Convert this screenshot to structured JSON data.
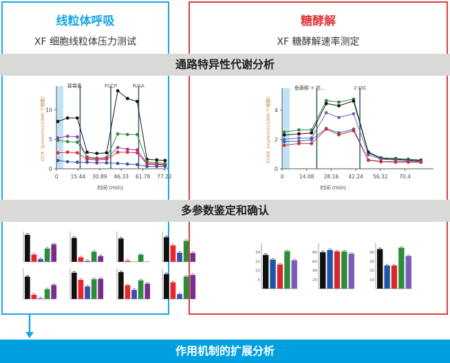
{
  "left_panel": {
    "title": "线粒体呼吸",
    "subtitle": "XF 细胞线粒体压力测试",
    "border_color": "#19a6e0"
  },
  "right_panel": {
    "title": "糖酵解",
    "subtitle": "XF 糖酵解速率测定",
    "border_color": "#e03a3e"
  },
  "bands": {
    "pathway": "通路特异性代谢分析",
    "multiparam": "多参数鉴定和确认"
  },
  "footer": {
    "label": "作用机制的扩展分析",
    "color": "#009fe0"
  },
  "chart_data": [
    {
      "type": "line",
      "title": "",
      "xlabel": "时间 (min)",
      "ylabel": "OCR（pmol/min/1000 个细胞）",
      "x_ticks": [
        "0",
        "15.44",
        "30.89",
        "46.33",
        "61.78",
        "77.22"
      ],
      "y_ticks": [
        "0",
        "5",
        "10"
      ],
      "ylim": [
        0,
        14
      ],
      "injections": [
        "寡霉素",
        "FCCP",
        "R/AA"
      ],
      "x": [
        1,
        8,
        15,
        22,
        29,
        36,
        44,
        51,
        58,
        65,
        72,
        78
      ],
      "series": [
        {
          "name": "black",
          "color": "#111111",
          "values": [
            8.0,
            8.6,
            8.6,
            2.8,
            2.6,
            2.7,
            13.2,
            11.9,
            11.4,
            1.6,
            1.5,
            1.4
          ]
        },
        {
          "name": "green",
          "color": "#2e8b3a",
          "values": [
            4.8,
            4.6,
            4.5,
            2.0,
            1.8,
            1.9,
            5.9,
            5.8,
            5.8,
            1.2,
            1.0,
            0.9
          ]
        },
        {
          "name": "purple",
          "color": "#8a3fa0",
          "values": [
            5.2,
            5.5,
            5.4,
            1.8,
            1.7,
            1.8,
            3.6,
            3.3,
            3.2,
            0.9,
            0.8,
            0.7
          ]
        },
        {
          "name": "red",
          "color": "#e8262e",
          "values": [
            2.7,
            2.8,
            2.7,
            1.6,
            1.5,
            1.6,
            2.8,
            2.8,
            2.7,
            0.8,
            0.7,
            0.6
          ]
        },
        {
          "name": "blue",
          "color": "#3a4fa8",
          "values": [
            1.4,
            1.2,
            1.1,
            1.1,
            1.0,
            1.0,
            0.9,
            0.8,
            0.7,
            0.4,
            0.4,
            0.4
          ]
        }
      ]
    },
    {
      "type": "line",
      "title": "",
      "xlabel": "时间 (min)",
      "ylabel": "ECAR（mpH/min/1000 个细胞）",
      "x_ticks": [
        "0",
        "14.08",
        "28.16",
        "42.24",
        "56.32",
        "70.4"
      ],
      "y_ticks": [
        "0",
        "2",
        "4"
      ],
      "ylim": [
        0,
        5.5
      ],
      "injections": [
        "鱼藤酮 + 抗...",
        "2-DG"
      ],
      "x": [
        1,
        8,
        14,
        21,
        27,
        34,
        41,
        47,
        54,
        60,
        66
      ],
      "series": [
        {
          "name": "green",
          "color": "#2e8b3a",
          "values": [
            2.5,
            2.65,
            2.65,
            4.65,
            4.55,
            4.75,
            1.15,
            0.75,
            0.7,
            0.65,
            0.6
          ]
        },
        {
          "name": "black",
          "color": "#111111",
          "values": [
            2.3,
            2.38,
            2.45,
            4.45,
            4.3,
            4.62,
            1.1,
            0.7,
            0.65,
            0.6,
            0.55
          ]
        },
        {
          "name": "purple",
          "color": "#7a5bb8",
          "values": [
            2.0,
            2.1,
            2.1,
            3.82,
            3.5,
            3.75,
            0.95,
            0.65,
            0.6,
            0.55,
            0.5
          ]
        },
        {
          "name": "blue",
          "color": "#2a6cb0",
          "values": [
            1.85,
            1.88,
            1.98,
            2.75,
            2.45,
            2.7,
            0.6,
            0.5,
            0.48,
            0.48,
            0.45
          ]
        },
        {
          "name": "red",
          "color": "#d42a2e",
          "values": [
            1.6,
            1.72,
            1.72,
            2.7,
            2.32,
            2.6,
            0.58,
            0.48,
            0.45,
            0.45,
            0.44
          ]
        }
      ]
    },
    {
      "type": "bar",
      "group": "mito-parameters",
      "colors": [
        "#111111",
        "#e8262e",
        "#3a4fa8",
        "#2e8b3a",
        "#7b2d8e"
      ],
      "panels": [
        {
          "ymax": 8,
          "values": [
            7.1,
            1.9,
            0.7,
            3.5,
            4.6
          ]
        },
        {
          "ymax": 15,
          "values": [
            11.8,
            2.2,
            0.4,
            5.0,
            2.8
          ]
        },
        {
          "ymax": 6,
          "values": [
            4.6,
            0.2,
            0.0,
            1.4,
            0.0
          ]
        },
        {
          "ymax": 200,
          "values": [
            162,
            108,
            60,
            138,
            58
          ]
        },
        {
          "ymax": 8,
          "values": [
            5.9,
            1.1,
            0.15,
            2.6,
            3.7
          ]
        },
        {
          "ymax": 1.5,
          "values": [
            1.3,
            0.95,
            0.62,
            0.98,
            1.0
          ]
        },
        {
          "ymax": 1.5,
          "values": [
            1.33,
            0.68,
            0.45,
            0.92,
            0.76
          ]
        },
        {
          "ymax": 100,
          "values": [
            82,
            55,
            16,
            74,
            79
          ]
        }
      ]
    },
    {
      "type": "bar",
      "group": "glyco-parameters",
      "colors": [
        "#111111",
        "#1e55a5",
        "#d42a2e",
        "#2e8b3a",
        "#7a5bb8"
      ],
      "panels": [
        {
          "ymax": 25,
          "y_ticks": [
            "5",
            "10",
            "15",
            "20"
          ],
          "values": [
            18.5,
            16,
            13.3,
            20.6,
            15.6
          ]
        },
        {
          "ymax": 100,
          "y_ticks": [
            "20",
            "40",
            "60",
            "80"
          ],
          "values": [
            80,
            85,
            82,
            82,
            77
          ]
        },
        {
          "ymax": 50,
          "y_ticks": [
            "10",
            "20",
            "30",
            "40"
          ],
          "values": [
            43.5,
            25.5,
            25.5,
            45,
            36
          ]
        }
      ]
    }
  ]
}
